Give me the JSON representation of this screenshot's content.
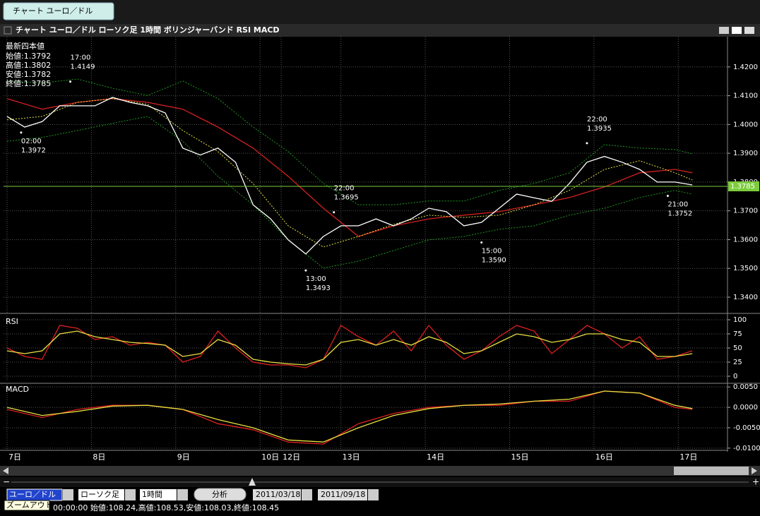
{
  "tab": "チャート ユーロ／ドル",
  "window_title": "チャート ユーロ／ドル ローソク足 1時間 ボリンジャーバンド RSI MACD",
  "quote": {
    "title": "最新四本値",
    "rows": [
      "始値:1.3792",
      "高値:1.3802",
      "安値:1.3782",
      "終値:1.3785"
    ]
  },
  "chart_data": [
    {
      "type": "line",
      "ylim": [
        1.3346,
        1.4305
      ],
      "yticks": [
        {
          "value": 1.34,
          "label": "1.3400"
        },
        {
          "value": 1.35,
          "label": "1.3500"
        },
        {
          "value": 1.36,
          "label": "1.3600"
        },
        {
          "value": 1.37,
          "label": "1.3700"
        },
        {
          "value": 1.38,
          "label": "1.3800"
        },
        {
          "value": 1.39,
          "label": "1.3900"
        },
        {
          "value": 1.4,
          "label": "1.4000"
        },
        {
          "value": 1.41,
          "label": "1.4100"
        },
        {
          "value": 1.42,
          "label": "1.4200"
        }
      ],
      "xlim": [
        -1,
        205
      ],
      "xticks": [
        {
          "value": 0,
          "label": "7日"
        },
        {
          "value": 24,
          "label": "8日"
        },
        {
          "value": 48,
          "label": "9日"
        },
        {
          "value": 72,
          "label": "10日"
        },
        {
          "value": 78,
          "label": "12日"
        },
        {
          "value": 95,
          "label": "13日"
        },
        {
          "value": 119,
          "label": "14日"
        },
        {
          "value": 143,
          "label": "15日"
        },
        {
          "value": 167,
          "label": "16日"
        },
        {
          "value": 191,
          "label": "17日"
        }
      ],
      "grid": true,
      "series": [
        {
          "color": "#1f9a1f",
          "style": "dotted",
          "x": [
            0,
            10,
            20,
            30,
            40,
            50,
            60,
            70,
            80,
            90,
            100,
            110,
            120,
            130,
            140,
            150,
            160,
            170,
            180,
            190,
            195
          ],
          "values": [
            1.4151,
            1.4144,
            1.4158,
            1.4126,
            1.4101,
            1.4151,
            1.409,
            1.3991,
            1.3906,
            1.3795,
            1.3721,
            1.3721,
            1.3734,
            1.3734,
            1.3771,
            1.3795,
            1.3832,
            1.393,
            1.3918,
            1.3913,
            1.3898
          ]
        },
        {
          "color": "#1f9a1f",
          "style": "dotted",
          "x": [
            0,
            10,
            20,
            30,
            40,
            50,
            60,
            70,
            80,
            90,
            100,
            110,
            120,
            130,
            140,
            150,
            160,
            170,
            180,
            190,
            195
          ],
          "values": [
            1.3942,
            1.3955,
            1.3979,
            1.4004,
            1.4028,
            1.3942,
            1.382,
            1.3721,
            1.3599,
            1.3501,
            1.3525,
            1.3562,
            1.3599,
            1.3611,
            1.3636,
            1.3648,
            1.3685,
            1.3709,
            1.3746,
            1.3771,
            1.3758
          ]
        },
        {
          "color": "#d42020",
          "style": "solid",
          "x": [
            0,
            10,
            20,
            30,
            40,
            50,
            60,
            70,
            80,
            90,
            100,
            110,
            120,
            130,
            140,
            150,
            160,
            170,
            180,
            190,
            195
          ],
          "values": [
            1.409,
            1.4053,
            1.4077,
            1.409,
            1.4077,
            1.4053,
            1.3991,
            1.3918,
            1.382,
            1.3709,
            1.3611,
            1.3648,
            1.3672,
            1.3685,
            1.3697,
            1.3721,
            1.3746,
            1.3783,
            1.3832,
            1.3844,
            1.3832
          ]
        },
        {
          "color": "#e8e040",
          "style": "dotted",
          "x": [
            0,
            10,
            20,
            30,
            40,
            50,
            60,
            70,
            80,
            90,
            100,
            110,
            120,
            130,
            140,
            150,
            160,
            170,
            180,
            190,
            195
          ],
          "values": [
            1.4016,
            1.4028,
            1.4077,
            1.409,
            1.407,
            1.3979,
            1.3906,
            1.3795,
            1.3648,
            1.3574,
            1.3611,
            1.3653,
            1.3685,
            1.3677,
            1.3685,
            1.3721,
            1.3771,
            1.3844,
            1.3874,
            1.3832,
            1.3807
          ]
        },
        {
          "color": "#ffffff",
          "style": "solid",
          "x": [
            0,
            5,
            10,
            15,
            20,
            25,
            30,
            35,
            40,
            45,
            50,
            55,
            60,
            65,
            70,
            75,
            80,
            85,
            90,
            95,
            100,
            105,
            110,
            115,
            120,
            125,
            130,
            135,
            140,
            145,
            150,
            155,
            160,
            165,
            170,
            175,
            180,
            185,
            190,
            195
          ],
          "values": [
            1.4028,
            1.3991,
            1.401,
            1.4065,
            1.4065,
            1.4065,
            1.4094,
            1.4077,
            1.4065,
            1.404,
            1.3918,
            1.3894,
            1.3918,
            1.3869,
            1.3721,
            1.3672,
            1.3599,
            1.355,
            1.3611,
            1.3648,
            1.3648,
            1.3672,
            1.3648,
            1.3672,
            1.3709,
            1.3697,
            1.3648,
            1.366,
            1.3709,
            1.3758,
            1.3745,
            1.3733,
            1.3795,
            1.3869,
            1.3889,
            1.3869,
            1.3844,
            1.38,
            1.38,
            1.379
          ]
        }
      ],
      "price_line": {
        "value": 1.3785,
        "label": "1.3785",
        "color": "#7ccc3c"
      },
      "annotations": [
        {
          "time": "17:00",
          "x": 18,
          "value": 1.4149,
          "label": "1.4149",
          "position": "above"
        },
        {
          "time": "02:00",
          "x": 4,
          "value": 1.3972,
          "label": "1.3972",
          "position": "below"
        },
        {
          "time": "22:00",
          "x": 93,
          "value": 1.3695,
          "label": "1.3695",
          "position": "above"
        },
        {
          "time": "13:00",
          "x": 85,
          "value": 1.3493,
          "label": "1.3493",
          "position": "below"
        },
        {
          "time": "15:00",
          "x": 135,
          "value": 1.359,
          "label": "1.3590",
          "position": "below"
        },
        {
          "time": "22:00",
          "x": 165,
          "value": 1.3935,
          "label": "1.3935",
          "position": "above"
        },
        {
          "time": "21:00",
          "x": 188,
          "value": 1.3752,
          "label": "1.3752",
          "position": "below"
        }
      ]
    },
    {
      "type": "line",
      "title": "RSI",
      "ylim": [
        -8.75,
        107.5
      ],
      "yticks": [
        0,
        25,
        50,
        75,
        100
      ],
      "grid": true,
      "series": [
        {
          "color": "#e02020",
          "style": "solid",
          "x": [
            0,
            5,
            10,
            15,
            20,
            25,
            30,
            35,
            40,
            45,
            50,
            55,
            60,
            65,
            70,
            75,
            80,
            85,
            90,
            95,
            100,
            105,
            110,
            115,
            120,
            125,
            130,
            135,
            140,
            145,
            150,
            155,
            160,
            165,
            170,
            175,
            180,
            185,
            190,
            195
          ],
          "values": [
            50,
            35,
            30,
            90,
            85,
            65,
            70,
            55,
            60,
            55,
            25,
            35,
            80,
            50,
            25,
            20,
            20,
            15,
            30,
            90,
            70,
            55,
            80,
            45,
            90,
            55,
            30,
            45,
            70,
            90,
            80,
            40,
            65,
            90,
            75,
            50,
            70,
            30,
            35,
            45
          ]
        },
        {
          "color": "#e8e040",
          "style": "solid",
          "x": [
            0,
            5,
            10,
            15,
            20,
            25,
            30,
            35,
            40,
            45,
            50,
            55,
            60,
            65,
            70,
            75,
            80,
            85,
            90,
            95,
            100,
            105,
            110,
            115,
            120,
            125,
            130,
            135,
            140,
            145,
            150,
            155,
            160,
            165,
            170,
            175,
            180,
            185,
            190,
            195
          ],
          "values": [
            45,
            40,
            45,
            75,
            80,
            70,
            65,
            60,
            58,
            55,
            35,
            40,
            65,
            55,
            30,
            25,
            22,
            20,
            30,
            60,
            65,
            55,
            65,
            55,
            70,
            60,
            40,
            45,
            60,
            75,
            70,
            60,
            65,
            75,
            75,
            65,
            60,
            35,
            35,
            40
          ]
        }
      ]
    },
    {
      "type": "line",
      "title": "MACD",
      "ylim": [
        -0.0102,
        0.00555
      ],
      "yticks": [
        {
          "value": -0.01,
          "label": "-0.0100"
        },
        {
          "value": -0.005,
          "label": "-0.0050"
        },
        {
          "value": 0,
          "label": "0.0000"
        },
        {
          "value": 0.005,
          "label": "0.0050"
        }
      ],
      "grid": true,
      "series": [
        {
          "color": "#e02020",
          "style": "solid",
          "x": [
            0,
            10,
            20,
            30,
            40,
            50,
            60,
            70,
            80,
            90,
            100,
            110,
            120,
            130,
            140,
            150,
            160,
            170,
            180,
            190,
            195
          ],
          "values": [
            -0.0005,
            -0.0025,
            -0.0005,
            0.0005,
            0.0005,
            -0.0005,
            -0.004,
            -0.0055,
            -0.0085,
            -0.009,
            -0.004,
            -0.0015,
            0,
            0.0005,
            0.0005,
            0.0015,
            0.0015,
            0.004,
            0.0035,
            0,
            -0.0005
          ]
        },
        {
          "color": "#e8e040",
          "style": "solid",
          "x": [
            0,
            10,
            20,
            30,
            40,
            50,
            60,
            70,
            80,
            90,
            100,
            110,
            120,
            130,
            140,
            150,
            160,
            170,
            180,
            190,
            195
          ],
          "values": [
            0,
            -0.002,
            -0.001,
            0.0003,
            0.0005,
            -0.0005,
            -0.003,
            -0.005,
            -0.008,
            -0.0085,
            -0.005,
            -0.002,
            -0.0003,
            0.0005,
            0.0008,
            0.0015,
            0.002,
            0.004,
            0.0035,
            0.0005,
            -0.0003
          ]
        }
      ]
    }
  ],
  "toolbar": {
    "pair": "ユーロ／ドル",
    "chart_kind": "ローソク足",
    "interval": "1時間",
    "analyze": "分析",
    "from": "2011/03/18",
    "to": "2011/09/18",
    "tooltip": "ズームアウト"
  },
  "status": "00:00:00 始値:108.24,高値:108.53,安値:108.03,終値:108.45"
}
